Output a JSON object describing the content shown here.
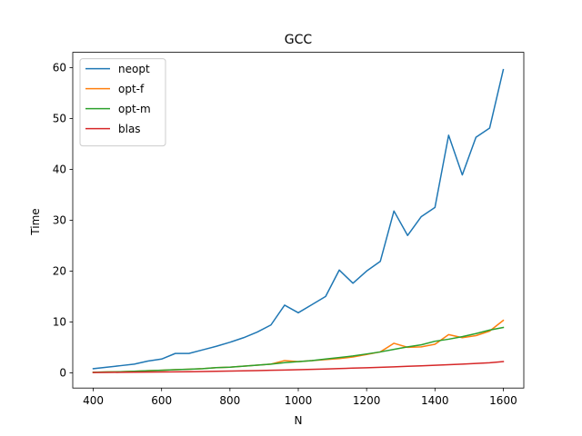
{
  "chart_data": {
    "type": "line",
    "title": "GCC",
    "xlabel": "N",
    "ylabel": "Time",
    "xlim": [
      340,
      1660
    ],
    "ylim": [
      -3,
      63
    ],
    "xticks": [
      400,
      600,
      800,
      1000,
      1200,
      1400,
      1600
    ],
    "yticks": [
      0,
      10,
      20,
      30,
      40,
      50,
      60
    ],
    "grid": false,
    "legend_position": "top-left",
    "x": [
      400,
      440,
      480,
      520,
      560,
      600,
      640,
      680,
      720,
      760,
      800,
      840,
      880,
      920,
      960,
      1000,
      1040,
      1080,
      1120,
      1160,
      1200,
      1240,
      1280,
      1320,
      1360,
      1400,
      1440,
      1480,
      1520,
      1560,
      1600
    ],
    "series": [
      {
        "name": "neopt",
        "color": "#1f77b4",
        "values": [
          0.8,
          1.1,
          1.4,
          1.7,
          2.3,
          2.7,
          3.8,
          3.8,
          4.5,
          5.2,
          6.0,
          6.9,
          8.0,
          9.4,
          13.3,
          11.8,
          13.4,
          15.0,
          20.2,
          17.6,
          20.0,
          21.9,
          31.8,
          27.0,
          30.7,
          32.5,
          46.7,
          38.9,
          46.3,
          48.1,
          59.6
        ]
      },
      {
        "name": "opt-f",
        "color": "#ff7f0e",
        "values": [
          0.1,
          0.15,
          0.2,
          0.3,
          0.4,
          0.5,
          0.6,
          0.7,
          0.8,
          1.0,
          1.1,
          1.3,
          1.5,
          1.7,
          2.4,
          2.2,
          2.4,
          2.6,
          2.8,
          3.1,
          3.6,
          4.1,
          5.8,
          5.0,
          5.1,
          5.6,
          7.5,
          6.9,
          7.3,
          8.2,
          10.3
        ]
      },
      {
        "name": "opt-m",
        "color": "#2ca02c",
        "values": [
          0.1,
          0.15,
          0.2,
          0.3,
          0.4,
          0.5,
          0.6,
          0.7,
          0.8,
          1.0,
          1.1,
          1.3,
          1.5,
          1.7,
          2.0,
          2.2,
          2.4,
          2.7,
          3.0,
          3.3,
          3.7,
          4.1,
          4.6,
          5.1,
          5.5,
          6.2,
          6.6,
          7.1,
          7.7,
          8.4,
          8.9
        ]
      },
      {
        "name": "blas",
        "color": "#d62728",
        "values": [
          0.05,
          0.07,
          0.09,
          0.11,
          0.13,
          0.15,
          0.18,
          0.21,
          0.25,
          0.29,
          0.33,
          0.38,
          0.43,
          0.49,
          0.55,
          0.61,
          0.68,
          0.75,
          0.83,
          0.91,
          0.99,
          1.08,
          1.17,
          1.27,
          1.37,
          1.48,
          1.59,
          1.71,
          1.83,
          1.96,
          2.2
        ]
      }
    ]
  }
}
